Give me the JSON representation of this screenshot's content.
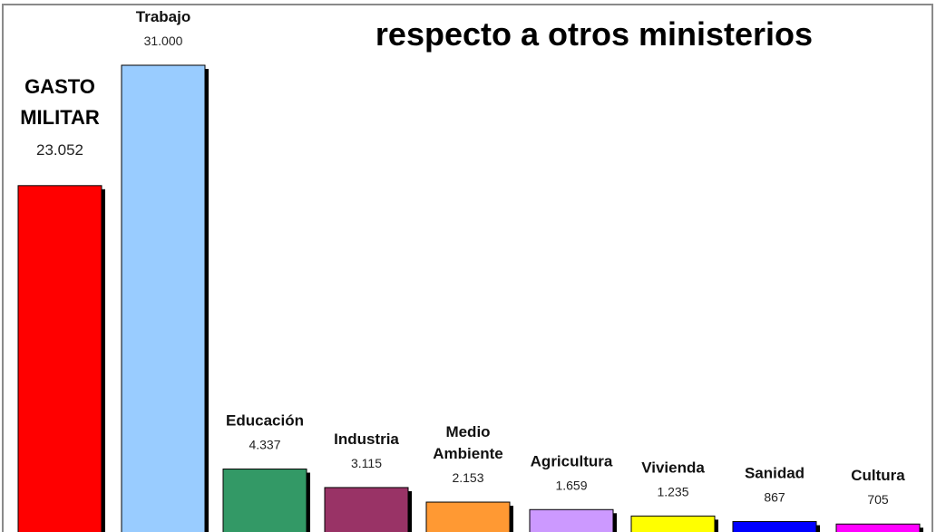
{
  "chart_data": {
    "type": "bar",
    "title": "respecto a otros ministerios",
    "categories": [
      [
        "GASTO",
        "MILITAR"
      ],
      [
        "Trabajo"
      ],
      [
        "Educación"
      ],
      [
        "Industria"
      ],
      [
        "Medio",
        "Ambiente"
      ],
      [
        "Agricultura"
      ],
      [
        "Vivienda"
      ],
      [
        "Sanidad"
      ],
      [
        "Cultura"
      ]
    ],
    "values": [
      23052,
      31000,
      4337,
      3115,
      2153,
      1659,
      1235,
      867,
      705
    ],
    "value_labels": [
      "23.052",
      "31.000",
      "4.337",
      "3.115",
      "2.153",
      "1.659",
      "1.235",
      "867",
      "705"
    ],
    "colors": [
      "#ff0000",
      "#99ccff",
      "#339966",
      "#993366",
      "#ff9933",
      "#cc99ff",
      "#ffff00",
      "#0000ff",
      "#ff00ff"
    ],
    "ylim": [
      0,
      31000
    ],
    "grid": false,
    "legend": "none"
  }
}
